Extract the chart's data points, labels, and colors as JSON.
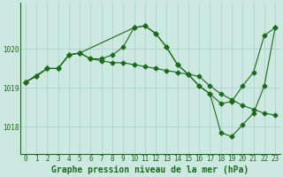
{
  "background_color": "#cce8e0",
  "grid_color": "#aad4cc",
  "line_color": "#1a6b1a",
  "xlabel": "Graphe pression niveau de la mer (hPa)",
  "xlabel_fontsize": 7.0,
  "yticks": [
    1018,
    1019,
    1020
  ],
  "xticks": [
    0,
    1,
    2,
    3,
    4,
    5,
    6,
    7,
    8,
    9,
    10,
    11,
    12,
    13,
    14,
    15,
    16,
    17,
    18,
    19,
    20,
    21,
    22,
    23
  ],
  "xlim": [
    -0.5,
    23.5
  ],
  "ylim": [
    1017.3,
    1021.2
  ],
  "series1_x": [
    0,
    1,
    2,
    3,
    4,
    5,
    6,
    7,
    8,
    9,
    10,
    11,
    12,
    13,
    14,
    15,
    16,
    17,
    18,
    19,
    20,
    21,
    22,
    23
  ],
  "series1_y": [
    1019.15,
    1019.3,
    1019.5,
    1019.5,
    1019.85,
    1019.9,
    1019.75,
    1019.75,
    1019.85,
    1020.05,
    1020.55,
    1020.6,
    1020.4,
    1020.05,
    1019.6,
    1019.35,
    1019.05,
    1018.85,
    1018.6,
    1018.65,
    1019.05,
    1019.4,
    1020.35,
    1020.55
  ],
  "series2_x": [
    0,
    1,
    2,
    3,
    4,
    5,
    6,
    7,
    8,
    9,
    10,
    11,
    12,
    13,
    14,
    15,
    16,
    17,
    18,
    19,
    20,
    21,
    22,
    23
  ],
  "series2_y": [
    1019.15,
    1019.3,
    1019.5,
    1019.5,
    1019.85,
    1019.9,
    1019.75,
    1019.7,
    1019.65,
    1019.65,
    1019.6,
    1019.55,
    1019.5,
    1019.45,
    1019.4,
    1019.35,
    1019.3,
    1019.05,
    1018.85,
    1018.7,
    1018.55,
    1018.45,
    1018.35,
    1018.3
  ],
  "series3_x": [
    0,
    2,
    3,
    4,
    5,
    10,
    11,
    12,
    13,
    14,
    15,
    16,
    17,
    18,
    19,
    20,
    21,
    22,
    23
  ],
  "series3_y": [
    1019.15,
    1019.5,
    1019.5,
    1019.85,
    1019.9,
    1020.55,
    1020.6,
    1020.4,
    1020.05,
    1019.6,
    1019.35,
    1019.05,
    1018.85,
    1017.85,
    1017.75,
    1018.05,
    1018.35,
    1019.05,
    1020.55
  ],
  "tick_fontsize": 5.5,
  "marker": "D",
  "marker_size": 2.5
}
